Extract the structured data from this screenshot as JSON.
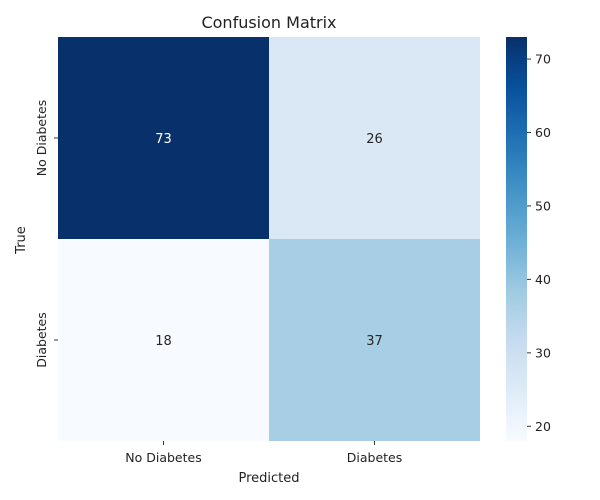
{
  "chart_data": {
    "type": "heatmap",
    "title": "Confusion Matrix",
    "xlabel": "Predicted",
    "ylabel": "True",
    "x_categories": [
      "No Diabetes",
      "Diabetes"
    ],
    "y_categories": [
      "No Diabetes",
      "Diabetes"
    ],
    "values": [
      [
        73,
        26
      ],
      [
        18,
        37
      ]
    ],
    "colormap": "Blues",
    "colorbar": {
      "min": 18,
      "max": 73,
      "ticks": [
        20,
        30,
        40,
        50,
        60,
        70
      ]
    },
    "colors": {
      "low": "#f7fbff",
      "high": "#08306b"
    }
  }
}
